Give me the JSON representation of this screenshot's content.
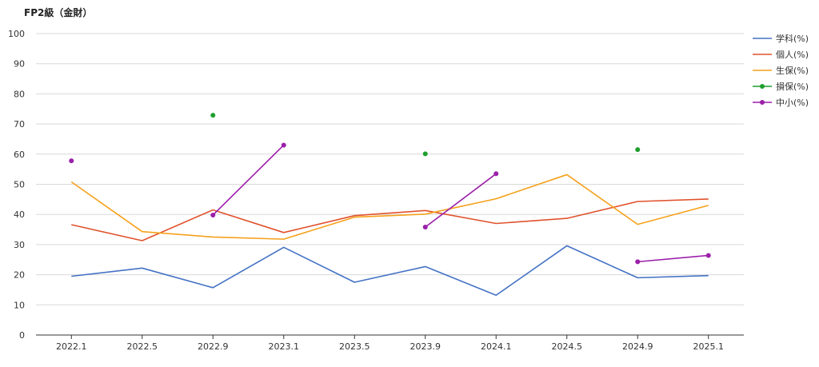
{
  "chart_data": {
    "type": "line",
    "title": "FP2級（金財）",
    "xlabel": "",
    "ylabel": "",
    "categories": [
      "2022.1",
      "2022.5",
      "2022.9",
      "2023.1",
      "2023.5",
      "2023.9",
      "2024.1",
      "2024.5",
      "2024.9",
      "2025.1"
    ],
    "ylim": [
      0,
      100
    ],
    "yticks": [
      0,
      10,
      20,
      30,
      40,
      50,
      60,
      70,
      80,
      90,
      100
    ],
    "grid": true,
    "legend_position": "right",
    "series": [
      {
        "name": "学科(%)",
        "color": "#4472c4",
        "marker": false,
        "values": [
          19.5,
          22.2,
          15.7,
          29.1,
          17.5,
          22.7,
          13.2,
          29.6,
          19.0,
          19.7
        ]
      },
      {
        "name": "個人(%)",
        "color": "#e0522d",
        "marker": false,
        "values": [
          36.6,
          31.3,
          41.5,
          34.0,
          39.6,
          41.3,
          37.0,
          38.7,
          44.3,
          45.1
        ]
      },
      {
        "name": "生保(%)",
        "color": "#f5a11c",
        "marker": false,
        "values": [
          50.8,
          34.3,
          32.5,
          31.8,
          39.1,
          40.1,
          45.2,
          53.2,
          36.7,
          43.0
        ]
      },
      {
        "name": "損保(%)",
        "color": "#1e9e2f",
        "marker": true,
        "values": [
          null,
          null,
          72.9,
          null,
          null,
          60.1,
          null,
          null,
          61.5,
          null
        ]
      },
      {
        "name": "中小(%)",
        "color": "#9b1faa",
        "marker": true,
        "values": [
          57.8,
          null,
          39.8,
          63.0,
          null,
          35.8,
          53.5,
          null,
          24.3,
          26.4
        ]
      }
    ]
  }
}
